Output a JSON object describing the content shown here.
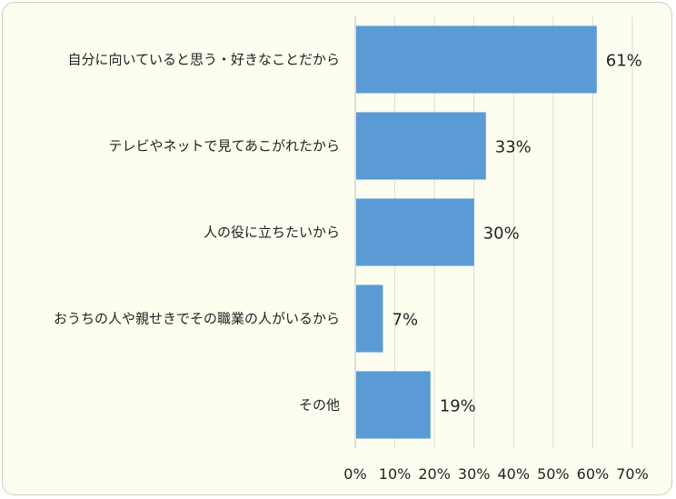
{
  "chart_data": {
    "type": "bar",
    "orientation": "horizontal",
    "categories": [
      "自分に向いていると思う・好きなことだから",
      "テレビやネットで見てあこがれたから",
      "人の役に立ちたいから",
      "おうちの人や親せきでその職業の人がいるから",
      "その他"
    ],
    "values": [
      61,
      33,
      30,
      7,
      19
    ],
    "value_labels": [
      "61%",
      "33%",
      "30%",
      "7%",
      "19%"
    ],
    "x_ticks": [
      "0%",
      "10%",
      "20%",
      "30%",
      "40%",
      "50%",
      "60%",
      "70%"
    ],
    "xlim": [
      0,
      70
    ],
    "grid": true,
    "bar_color": "#5b9bd5",
    "grid_color": "#d9d9d9",
    "background_color": "#fefef0"
  }
}
